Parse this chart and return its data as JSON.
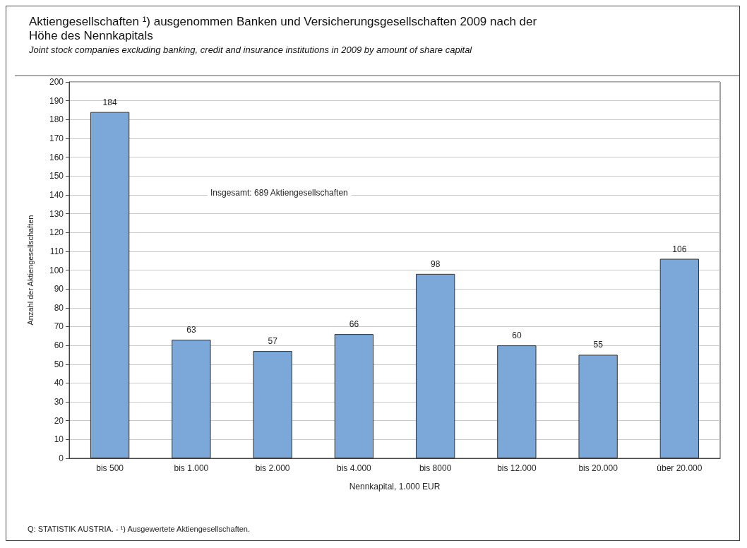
{
  "chart_data": {
    "type": "bar",
    "title": "Aktiengesellschaften ¹) ausgenommen Banken und Versicherungsgesellschaften 2009 nach der Höhe des Nennkapitals",
    "subtitle": "Joint stock companies excluding banking, credit and insurance institutions in 2009 by amount of share capital",
    "xlabel": "Nennkapital, 1.000 EUR",
    "ylabel": "Anzahl der Aktiengesellschaften",
    "categories": [
      "bis 500",
      "bis 1.000",
      "bis 2.000",
      "bis 4.000",
      "bis 8000",
      "bis 12.000",
      "bis 20.000",
      "über 20.000"
    ],
    "values": [
      184,
      63,
      57,
      66,
      98,
      60,
      55,
      106
    ],
    "color": "#7ba7d9",
    "ylim": [
      0,
      200
    ],
    "yticks": [
      0,
      10,
      20,
      30,
      40,
      50,
      60,
      70,
      80,
      90,
      100,
      110,
      120,
      130,
      140,
      150,
      160,
      170,
      180,
      190,
      200
    ],
    "grid": "y",
    "data_labels": true,
    "annotations": [
      "Insgesamt: 689 Aktiengesellschaften",
      "Q: STATISTIK AUSTRIA. - ¹) Ausgewertete Aktiengesellschaften."
    ]
  }
}
